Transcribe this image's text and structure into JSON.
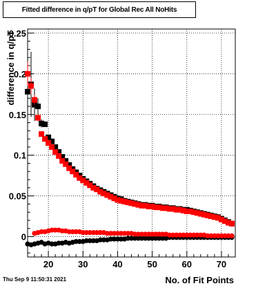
{
  "title": "Fitted difference in q/pT for Global Rec All NoHits",
  "timestamp": "Thu Sep  9 11:50:31 2021",
  "chart_data": {
    "type": "scatter",
    "title": "Fitted difference in q/pT for Global Rec All NoHits",
    "xlabel": "No. of Fit Points",
    "ylabel": "difference in q/pT",
    "xlim": [
      14,
      74
    ],
    "ylim": [
      -0.025,
      0.255
    ],
    "xticks": [
      20,
      30,
      40,
      50,
      60,
      70
    ],
    "yticks": [
      0,
      0.05,
      0.1,
      0.15,
      0.2,
      0.25
    ],
    "ytick_labels": [
      "0",
      "0.05",
      "0.1",
      "0.15",
      "0.2",
      "0.25"
    ],
    "grid": true,
    "series": [
      {
        "color": "#000000",
        "marker": "square",
        "x": [
          14,
          15,
          16,
          17,
          18,
          19,
          20,
          21,
          22,
          23,
          24,
          25,
          26,
          27,
          28,
          29,
          30,
          31,
          32,
          33,
          34,
          35,
          36,
          37,
          38,
          39,
          40,
          41,
          42,
          43,
          44,
          45,
          46,
          47,
          48,
          49,
          50,
          51,
          52,
          53,
          54,
          55,
          56,
          57,
          58,
          59,
          60,
          61,
          62,
          63,
          64,
          65,
          66,
          67,
          68,
          69,
          70,
          71,
          72,
          73
        ],
        "y": [
          0.178,
          0.187,
          0.162,
          0.16,
          0.139,
          0.138,
          0.122,
          0.117,
          0.11,
          0.104,
          0.098,
          0.093,
          0.088,
          0.083,
          0.079,
          0.075,
          0.071,
          0.068,
          0.065,
          0.062,
          0.059,
          0.057,
          0.055,
          0.053,
          0.051,
          0.049,
          0.047,
          0.046,
          0.044,
          0.043,
          0.042,
          0.041,
          0.04,
          0.039,
          0.039,
          0.038,
          0.038,
          0.037,
          0.037,
          0.036,
          0.036,
          0.035,
          0.035,
          0.034,
          0.034,
          0.033,
          0.033,
          0.032,
          0.031,
          0.03,
          0.029,
          0.028,
          0.027,
          0.026,
          0.025,
          0.024,
          0.022,
          0.02,
          0.018,
          0.016
        ],
        "err": [
          0.012,
          0.04,
          0.02,
          0.01,
          0.005,
          0,
          0,
          0,
          0,
          0,
          0,
          0,
          0,
          0,
          0,
          0,
          0,
          0,
          0,
          0,
          0,
          0,
          0,
          0,
          0,
          0,
          0,
          0,
          0,
          0,
          0,
          0,
          0,
          0,
          0,
          0,
          0,
          0,
          0,
          0,
          0,
          0,
          0,
          0,
          0,
          0,
          0,
          0,
          0,
          0,
          0,
          0,
          0,
          0,
          0,
          0,
          0,
          0,
          0,
          0
        ]
      },
      {
        "color": "#ff0000",
        "marker": "square",
        "x": [
          14,
          15,
          16,
          17,
          18,
          19,
          20,
          21,
          22,
          23,
          24,
          25,
          26,
          27,
          28,
          29,
          30,
          31,
          32,
          33,
          34,
          35,
          36,
          37,
          38,
          39,
          40,
          41,
          42,
          43,
          44,
          45,
          46,
          47,
          48,
          49,
          50,
          51,
          52,
          53,
          54,
          55,
          56,
          57,
          58,
          59,
          60,
          61,
          62,
          63,
          64,
          65,
          66,
          67,
          68,
          69,
          70,
          71,
          72,
          73
        ],
        "y": [
          0.2,
          0.185,
          0.168,
          0.146,
          0.126,
          0.12,
          0.115,
          0.11,
          0.104,
          0.099,
          0.093,
          0.089,
          0.084,
          0.08,
          0.076,
          0.072,
          0.069,
          0.066,
          0.063,
          0.06,
          0.058,
          0.055,
          0.053,
          0.051,
          0.049,
          0.047,
          0.045,
          0.044,
          0.043,
          0.042,
          0.041,
          0.04,
          0.039,
          0.038,
          0.038,
          0.037,
          0.037,
          0.036,
          0.036,
          0.035,
          0.035,
          0.034,
          0.034,
          0.033,
          0.033,
          0.032,
          0.031,
          0.031,
          0.03,
          0.029,
          0.028,
          0.027,
          0.026,
          0.025,
          0.024,
          0.023,
          0.021,
          0.019,
          0.017,
          0.016
        ],
        "err": [
          0.015,
          0.01,
          0.006,
          0.004,
          0,
          0,
          0,
          0,
          0,
          0,
          0,
          0,
          0,
          0,
          0,
          0,
          0,
          0,
          0,
          0,
          0,
          0,
          0,
          0,
          0,
          0,
          0,
          0,
          0,
          0,
          0,
          0,
          0,
          0,
          0,
          0,
          0,
          0,
          0,
          0,
          0,
          0,
          0,
          0,
          0,
          0,
          0,
          0,
          0,
          0,
          0,
          0,
          0,
          0,
          0,
          0,
          0,
          0,
          0,
          0
        ]
      },
      {
        "color": "#000000",
        "marker": "circle",
        "x": [
          14,
          15,
          16,
          17,
          18,
          19,
          20,
          21,
          22,
          23,
          24,
          25,
          26,
          27,
          28,
          29,
          30,
          31,
          32,
          33,
          34,
          35,
          36,
          37,
          38,
          39,
          40,
          41,
          42,
          43,
          44,
          45,
          46,
          47,
          48,
          49,
          50,
          51,
          52,
          53,
          54,
          55,
          56,
          57,
          58,
          59,
          60,
          61,
          62,
          63,
          64,
          65,
          66,
          67,
          68,
          69,
          70,
          71,
          72,
          73
        ],
        "y": [
          -0.009,
          -0.01,
          -0.009,
          -0.008,
          -0.007,
          -0.009,
          -0.008,
          -0.009,
          -0.009,
          -0.008,
          -0.008,
          -0.007,
          -0.008,
          -0.007,
          -0.006,
          -0.006,
          -0.006,
          -0.005,
          -0.005,
          -0.005,
          -0.005,
          -0.004,
          -0.004,
          -0.004,
          -0.003,
          -0.003,
          -0.003,
          -0.003,
          -0.003,
          -0.002,
          -0.002,
          -0.002,
          -0.002,
          -0.002,
          -0.002,
          -0.002,
          -0.002,
          -0.002,
          -0.002,
          -0.002,
          -0.002,
          -0.001,
          -0.001,
          -0.001,
          -0.001,
          -0.001,
          -0.001,
          -0.001,
          -0.001,
          -0.001,
          -0.001,
          -0.001,
          -0.001,
          -0.001,
          -0.001,
          -0.001,
          -0.001,
          -0.001,
          -0.001,
          -0.001
        ],
        "err": [
          0.003,
          0.002,
          0.002,
          0,
          0,
          0,
          0,
          0,
          0,
          0,
          0,
          0,
          0,
          0,
          0,
          0,
          0,
          0,
          0,
          0,
          0,
          0,
          0,
          0,
          0,
          0,
          0,
          0,
          0,
          0,
          0,
          0,
          0,
          0,
          0,
          0,
          0,
          0,
          0,
          0,
          0,
          0,
          0,
          0,
          0,
          0,
          0,
          0,
          0,
          0,
          0,
          0,
          0,
          0,
          0,
          0,
          0,
          0,
          0,
          0
        ]
      },
      {
        "color": "#ff0000",
        "marker": "circle",
        "x": [
          14,
          15,
          16,
          17,
          18,
          19,
          20,
          21,
          22,
          23,
          24,
          25,
          26,
          27,
          28,
          29,
          30,
          31,
          32,
          33,
          34,
          35,
          36,
          37,
          38,
          39,
          40,
          41,
          42,
          43,
          44,
          45,
          46,
          47,
          48,
          49,
          50,
          51,
          52,
          53,
          54,
          55,
          56,
          57,
          58,
          59,
          60,
          61,
          62,
          63,
          64,
          65,
          66,
          67,
          68,
          69,
          70,
          71,
          72,
          73
        ],
        "y": [
          null,
          null,
          0.004,
          0.005,
          0.006,
          0.006,
          0.007,
          0.008,
          0.008,
          0.008,
          0.007,
          0.007,
          0.006,
          0.006,
          0.006,
          0.006,
          0.005,
          0.005,
          0.005,
          0.005,
          0.005,
          0.005,
          0.005,
          0.004,
          0.004,
          0.004,
          0.004,
          0.004,
          0.004,
          0.004,
          0.004,
          0.003,
          0.003,
          0.003,
          0.003,
          0.003,
          0.003,
          0.003,
          0.003,
          0.003,
          0.003,
          0.002,
          0.002,
          0.002,
          0.002,
          0.002,
          0.002,
          0.002,
          0.002,
          0.002,
          0.002,
          0.002,
          0.001,
          0.001,
          0.001,
          0.001,
          0.001,
          0.001,
          0.001,
          0.001
        ],
        "err": [
          0,
          0,
          0.002,
          0.002,
          0,
          0,
          0,
          0,
          0,
          0,
          0,
          0,
          0,
          0,
          0,
          0,
          0,
          0,
          0,
          0,
          0,
          0,
          0,
          0,
          0,
          0,
          0,
          0,
          0,
          0,
          0,
          0,
          0,
          0,
          0,
          0,
          0,
          0,
          0,
          0,
          0,
          0,
          0,
          0,
          0,
          0,
          0,
          0,
          0,
          0,
          0,
          0,
          0,
          0,
          0,
          0,
          0,
          0,
          0,
          0
        ]
      }
    ]
  }
}
